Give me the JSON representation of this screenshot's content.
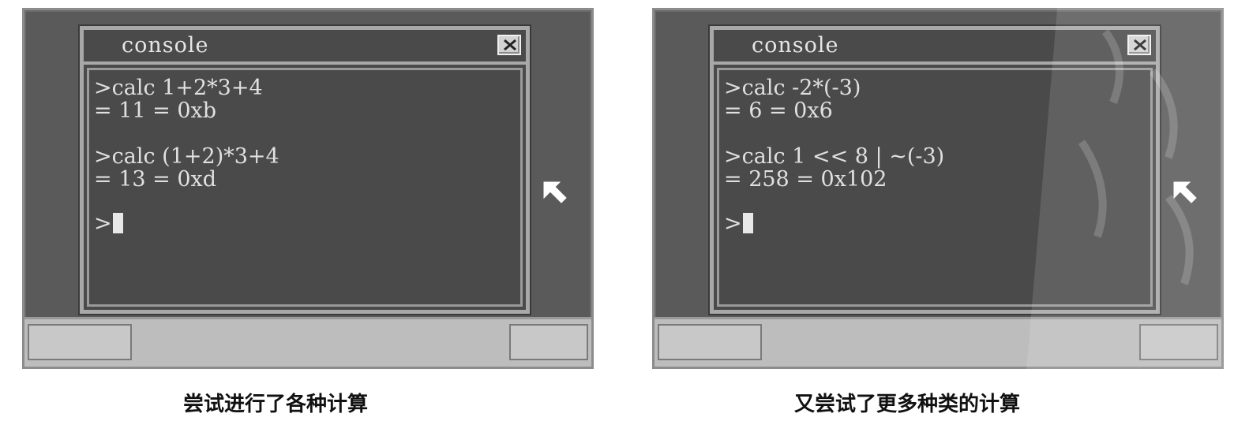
{
  "screens": [
    {
      "window_title": "console",
      "lines": [
        ">calc 1+2*3+4",
        "= 11 = 0xb",
        "",
        ">calc (1+2)*3+4",
        "= 13 = 0xd"
      ],
      "prompt": ">",
      "caption": "尝试进行了各种计算"
    },
    {
      "window_title": "console",
      "lines": [
        ">calc -2*(-3)",
        "= 6 = 0x6",
        "",
        ">calc 1 << 8 | ~(-3)",
        "= 258 = 0x102"
      ],
      "prompt": ">",
      "caption": "又尝试了更多种类的计算"
    }
  ],
  "icons": {
    "close": "close-icon",
    "pointer": "mouse-pointer-icon"
  },
  "colors": {
    "desktop": "#5a5a5a",
    "window_bg": "#4a4a4a",
    "window_border": "#a8a8a8",
    "text": "#e0e0e0",
    "taskbar": "#bdbdbd"
  }
}
